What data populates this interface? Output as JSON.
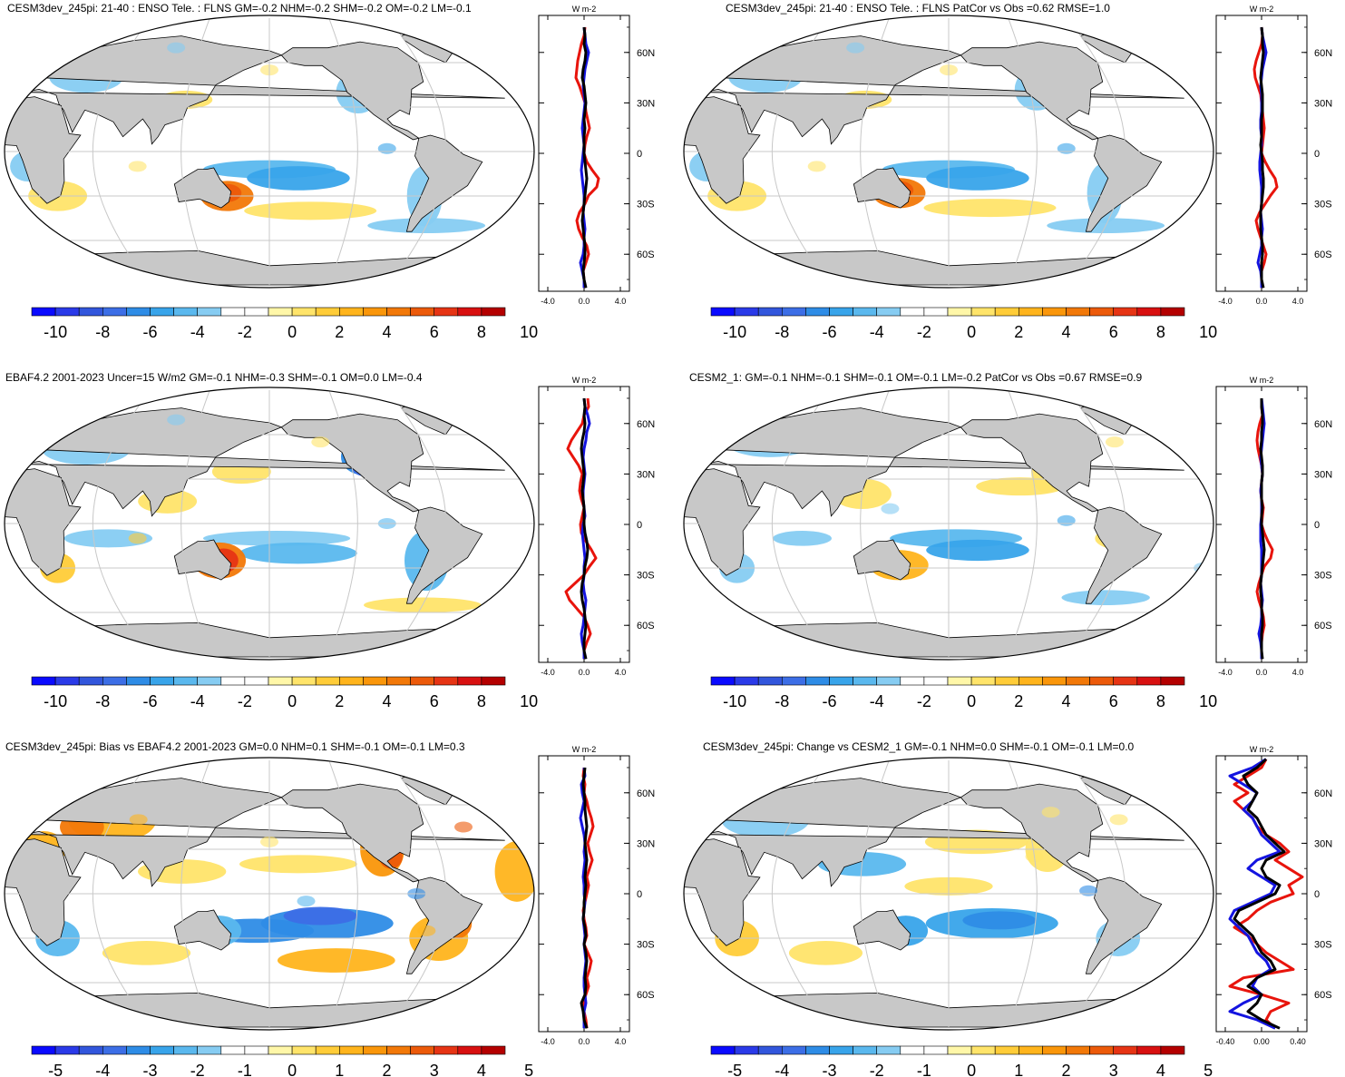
{
  "colors": {
    "ocean": "#ffffff",
    "land": "#c8c8c8",
    "grid": "#c8c8c8",
    "profile_red": "#e8140c",
    "profile_blue": "#1414e0",
    "profile_black": "#000000"
  },
  "colorbar": {
    "main_colors": [
      "#0a0aff",
      "#2a3ae8",
      "#3256dc",
      "#3c6ee6",
      "#2e8ce6",
      "#38a4ea",
      "#5ab8ee",
      "#86ccf2",
      "#ffffff",
      "#ffffff",
      "#fff7a8",
      "#ffe46a",
      "#ffcc38",
      "#ffb41c",
      "#fa960a",
      "#f27808",
      "#ec5a0a",
      "#e63414",
      "#d81010",
      "#b40000"
    ],
    "main_labels": [
      "-10",
      "-8",
      "-6",
      "-4",
      "-2",
      "0",
      "2",
      "4",
      "6",
      "8",
      "10"
    ],
    "bias_labels": [
      "-5",
      "-4",
      "-3",
      "-2",
      "-1",
      "0",
      "1",
      "2",
      "3",
      "4",
      "5"
    ]
  },
  "panels": [
    {
      "id": "p1",
      "title": "CESM3dev_245pi: 21-40 : ENSO Tele. : FLNS GM=-0.2 NHM=-0.2 SHM=-0.2 OM=-0.2 LM=-0.1",
      "colorbar_labels_key": "main",
      "profile": {
        "unit": "W m-2",
        "lat_labels": [
          "60N",
          "30N",
          "0",
          "30S",
          "60S"
        ],
        "x_labels": [
          "-4.0",
          "0.0",
          "4.0"
        ],
        "x_range": [
          -5,
          5
        ],
        "lat": [
          75,
          70,
          65,
          60,
          55,
          50,
          45,
          40,
          35,
          30,
          25,
          20,
          15,
          10,
          5,
          0,
          -5,
          -10,
          -15,
          -20,
          -25,
          -30,
          -35,
          -40,
          -45,
          -50,
          -55,
          -60,
          -65,
          -70,
          -75,
          -80
        ],
        "red": [
          0.1,
          0.0,
          -0.3,
          -0.5,
          -0.7,
          -0.8,
          -0.9,
          -0.5,
          -0.2,
          0.1,
          0.2,
          0.4,
          0.6,
          0.3,
          0.1,
          0.0,
          0.3,
          0.9,
          1.6,
          1.4,
          0.5,
          0.1,
          -0.5,
          -0.8,
          -0.6,
          -0.2,
          0.3,
          0.5,
          0.2,
          -0.1,
          0.0,
          0.0
        ],
        "blue": [
          0.0,
          0.1,
          0.2,
          0.5,
          0.3,
          0.1,
          0.0,
          -0.1,
          0.0,
          0.1,
          0.0,
          -0.1,
          -0.2,
          -0.1,
          0.0,
          -0.1,
          -0.2,
          -0.3,
          -0.2,
          -0.1,
          0.0,
          0.0,
          -0.1,
          0.0,
          0.1,
          0.0,
          0.0,
          -0.1,
          -0.4,
          -0.2,
          0.0,
          0.0
        ],
        "black": [
          0.0,
          0.1,
          0.0,
          0.2,
          0.1,
          -0.1,
          -0.2,
          0.0,
          0.1,
          0.2,
          0.1,
          0.0,
          0.1,
          0.0,
          0.0,
          0.0,
          0.1,
          0.2,
          0.3,
          0.2,
          0.1,
          0.0,
          -0.1,
          -0.2,
          -0.1,
          0.0,
          0.1,
          0.1,
          0.0,
          -0.1,
          0.0,
          0.2
        ]
      }
    },
    {
      "id": "p2",
      "title": "CESM3dev_245pi: 21-40 : ENSO Tele. : FLNS PatCor vs Obs =0.62 RMSE=1.0",
      "colorbar_labels_key": "main",
      "profile": {
        "unit": "W m-2",
        "lat_labels": [
          "60N",
          "30N",
          "0",
          "30S",
          "60S"
        ],
        "x_labels": [
          "-4.0",
          "0.0",
          "4.0"
        ],
        "x_range": [
          -5,
          5
        ],
        "lat": [
          75,
          70,
          65,
          60,
          55,
          50,
          45,
          40,
          35,
          30,
          25,
          20,
          15,
          10,
          5,
          0,
          -5,
          -10,
          -15,
          -20,
          -25,
          -30,
          -35,
          -40,
          -45,
          -50,
          -55,
          -60,
          -65,
          -70,
          -75,
          -80
        ],
        "red": [
          0.0,
          0.1,
          0.0,
          -0.3,
          -0.6,
          -0.8,
          -0.7,
          -0.4,
          -0.1,
          0.0,
          0.1,
          0.2,
          0.3,
          0.2,
          0.1,
          0.0,
          0.4,
          0.9,
          1.5,
          1.7,
          1.0,
          0.4,
          -0.2,
          -0.6,
          -0.4,
          -0.1,
          0.2,
          0.5,
          0.3,
          0.0,
          0.0,
          0.0
        ],
        "blue": [
          0.0,
          0.1,
          0.3,
          0.5,
          0.3,
          0.1,
          0.0,
          -0.1,
          0.0,
          0.0,
          0.0,
          -0.1,
          -0.1,
          0.0,
          0.0,
          -0.1,
          -0.2,
          -0.2,
          -0.1,
          0.0,
          0.0,
          0.0,
          -0.1,
          0.0,
          0.1,
          0.0,
          0.0,
          -0.2,
          -0.4,
          -0.1,
          0.0,
          0.0
        ],
        "black": [
          0.0,
          0.1,
          0.1,
          0.2,
          0.1,
          0.0,
          -0.1,
          0.0,
          0.1,
          0.1,
          0.1,
          0.0,
          0.0,
          0.0,
          -0.1,
          0.0,
          0.1,
          0.1,
          0.2,
          0.2,
          0.1,
          0.0,
          -0.1,
          -0.1,
          -0.1,
          0.0,
          0.1,
          0.1,
          0.0,
          0.0,
          0.0,
          0.2
        ]
      }
    },
    {
      "id": "p3",
      "title": "EBAF4.2 2001-2023 Uncer=15 W/m2 GM=-0.1 NHM=-0.3 SHM=-0.1 OM=0.0 LM=-0.4",
      "colorbar_labels_key": "main",
      "profile": {
        "unit": "W m-2",
        "lat_labels": [
          "60N",
          "30N",
          "0",
          "30S",
          "60S"
        ],
        "x_labels": [
          "-4.0",
          "0.0",
          "4.0"
        ],
        "x_range": [
          -5,
          5
        ],
        "lat": [
          75,
          70,
          65,
          60,
          55,
          50,
          45,
          40,
          35,
          30,
          25,
          20,
          15,
          10,
          5,
          0,
          -5,
          -10,
          -15,
          -20,
          -25,
          -30,
          -35,
          -40,
          -45,
          -50,
          -55,
          -60,
          -65,
          -70,
          -75,
          -80
        ],
        "red": [
          0.4,
          0.5,
          0.0,
          -0.2,
          -0.8,
          -1.4,
          -1.8,
          -1.2,
          -0.6,
          -0.2,
          -0.4,
          -0.5,
          -0.3,
          0.0,
          -0.2,
          -0.4,
          -0.3,
          0.2,
          0.8,
          1.3,
          0.6,
          0.0,
          -1.0,
          -2.0,
          -1.6,
          -0.8,
          0.0,
          0.4,
          0.7,
          0.3,
          0.0,
          0.0
        ],
        "blue": [
          0.0,
          0.1,
          0.4,
          0.6,
          0.3,
          0.2,
          0.0,
          -0.1,
          0.0,
          0.1,
          0.0,
          -0.1,
          -0.1,
          0.0,
          0.1,
          -0.1,
          -0.2,
          -0.1,
          0.0,
          0.1,
          0.0,
          0.0,
          -0.1,
          0.0,
          0.2,
          0.1,
          0.0,
          -0.1,
          -0.3,
          -0.2,
          0.0,
          0.0
        ],
        "black": [
          0.0,
          0.1,
          0.0,
          0.1,
          0.0,
          -0.2,
          -0.3,
          -0.2,
          -0.1,
          0.0,
          -0.1,
          -0.2,
          -0.1,
          0.0,
          0.0,
          0.0,
          0.1,
          0.3,
          0.4,
          0.3,
          0.1,
          0.0,
          -0.2,
          -0.3,
          -0.2,
          0.0,
          0.1,
          0.2,
          0.1,
          0.0,
          0.0,
          0.2
        ]
      }
    },
    {
      "id": "p4",
      "title": "CESM2_1: GM=-0.1 NHM=-0.1 SHM=-0.1 OM=-0.1 LM=-0.2 PatCor vs Obs =0.67 RMSE=0.9",
      "colorbar_labels_key": "main",
      "profile": {
        "unit": "W m-2",
        "lat_labels": [
          "60N",
          "30N",
          "0",
          "30S",
          "60S"
        ],
        "x_labels": [
          "-4.0",
          "0.0",
          "4.0"
        ],
        "x_range": [
          -5,
          5
        ],
        "lat": [
          75,
          70,
          65,
          60,
          55,
          50,
          45,
          40,
          35,
          30,
          25,
          20,
          15,
          10,
          5,
          0,
          -5,
          -10,
          -15,
          -20,
          -25,
          -30,
          -35,
          -40,
          -45,
          -50,
          -55,
          -60,
          -65,
          -70,
          -75,
          -80
        ],
        "red": [
          0.0,
          0.0,
          0.1,
          -0.2,
          -0.4,
          -0.5,
          -0.4,
          -0.2,
          0.0,
          0.1,
          0.0,
          -0.1,
          0.0,
          0.2,
          0.1,
          0.0,
          0.3,
          0.7,
          1.2,
          1.0,
          0.3,
          0.0,
          -0.3,
          -0.5,
          -0.3,
          0.0,
          0.2,
          0.3,
          0.1,
          0.0,
          0.0,
          0.0
        ],
        "blue": [
          0.0,
          0.1,
          0.2,
          0.3,
          0.2,
          0.1,
          0.0,
          -0.1,
          0.0,
          0.1,
          0.0,
          -0.1,
          0.0,
          0.0,
          0.0,
          -0.1,
          -0.1,
          -0.1,
          0.0,
          0.0,
          0.0,
          0.0,
          -0.1,
          0.0,
          0.1,
          0.0,
          0.0,
          -0.1,
          -0.3,
          -0.1,
          0.0,
          0.0
        ],
        "black": [
          0.0,
          0.0,
          0.1,
          0.1,
          0.0,
          0.0,
          -0.1,
          0.0,
          0.1,
          0.1,
          0.0,
          0.0,
          0.0,
          0.1,
          0.0,
          0.0,
          0.1,
          0.2,
          0.3,
          0.2,
          0.1,
          0.0,
          -0.1,
          -0.1,
          0.0,
          0.0,
          0.1,
          0.1,
          0.0,
          0.0,
          0.0,
          0.1
        ]
      }
    },
    {
      "id": "p5",
      "title": "CESM3dev_245pi: Bias vs EBAF4.2 2001-2023 GM=0.0 NHM=0.1 SHM=-0.1 OM=-0.1 LM=0.3",
      "colorbar_labels_key": "bias",
      "profile": {
        "unit": "W m-2",
        "lat_labels": [
          "60N",
          "30N",
          "0",
          "30S",
          "60S"
        ],
        "x_labels": [
          "-4.0",
          "0.0",
          "4.0"
        ],
        "x_range": [
          -5,
          5
        ],
        "lat": [
          75,
          70,
          65,
          60,
          55,
          50,
          45,
          40,
          35,
          30,
          25,
          20,
          15,
          10,
          5,
          0,
          -5,
          -10,
          -15,
          -20,
          -25,
          -30,
          -35,
          -40,
          -45,
          -50,
          -55,
          -60,
          -65,
          -70,
          -75,
          -80
        ],
        "red": [
          0.0,
          -0.1,
          0.1,
          0.0,
          0.3,
          0.5,
          0.8,
          1.0,
          0.7,
          0.4,
          0.6,
          0.9,
          0.6,
          0.3,
          0.5,
          0.3,
          0.1,
          -0.1,
          0.0,
          0.2,
          0.3,
          0.0,
          0.4,
          0.8,
          0.6,
          0.3,
          0.5,
          0.2,
          -0.1,
          0.0,
          0.2,
          0.3
        ],
        "blue": [
          0.0,
          0.1,
          -0.3,
          -0.2,
          0.0,
          -0.2,
          -0.4,
          -0.2,
          0.0,
          0.1,
          0.0,
          0.1,
          0.0,
          -0.1,
          0.0,
          0.0,
          0.1,
          0.0,
          -0.1,
          0.0,
          0.1,
          0.0,
          0.1,
          0.2,
          0.1,
          0.0,
          0.0,
          0.1,
          0.2,
          0.0,
          0.0,
          0.0
        ],
        "black": [
          0.1,
          0.0,
          -0.1,
          0.0,
          0.1,
          0.1,
          0.2,
          0.3,
          0.2,
          0.1,
          0.2,
          0.3,
          0.2,
          0.1,
          0.2,
          0.1,
          0.0,
          0.0,
          -0.1,
          0.1,
          0.2,
          0.0,
          0.2,
          0.3,
          0.2,
          0.1,
          0.2,
          0.1,
          -0.3,
          -0.1,
          0.0,
          0.3
        ]
      }
    },
    {
      "id": "p6",
      "title": "CESM3dev_245pi: Change vs CESM2_1 GM=-0.1 NHM=0.0 SHM=-0.1 OM=-0.1 LM=0.0",
      "colorbar_labels_key": "bias",
      "profile": {
        "unit": "W m-2",
        "lat_labels": [
          "60N",
          "30N",
          "0",
          "30S",
          "60S"
        ],
        "x_labels": [
          "-0.40",
          "0.00",
          "0.40"
        ],
        "x_range": [
          -0.5,
          0.5
        ],
        "lat": [
          80,
          75,
          70,
          65,
          60,
          55,
          50,
          45,
          40,
          35,
          30,
          25,
          20,
          15,
          10,
          5,
          0,
          -5,
          -10,
          -15,
          -20,
          -25,
          -30,
          -35,
          -40,
          -45,
          -50,
          -55,
          -60,
          -65,
          -70,
          -75,
          -80
        ],
        "red": [
          0.05,
          0.0,
          -0.15,
          -0.3,
          -0.15,
          -0.3,
          -0.2,
          -0.1,
          -0.05,
          0.05,
          0.2,
          0.3,
          0.15,
          0.3,
          0.45,
          0.3,
          0.35,
          0.1,
          -0.05,
          -0.15,
          -0.3,
          -0.15,
          -0.05,
          0.05,
          0.2,
          0.35,
          -0.2,
          -0.35,
          0.0,
          0.3,
          0.1,
          0.05,
          0.15
        ],
        "blue": [
          0.05,
          -0.1,
          -0.35,
          -0.2,
          -0.05,
          -0.1,
          -0.2,
          -0.1,
          -0.05,
          0.0,
          0.1,
          0.2,
          -0.05,
          -0.15,
          0.0,
          0.15,
          0.1,
          -0.1,
          -0.3,
          -0.35,
          -0.25,
          -0.15,
          -0.1,
          -0.05,
          0.05,
          0.1,
          -0.05,
          -0.1,
          0.0,
          -0.2,
          -0.35,
          -0.05,
          0.15
        ],
        "black": [
          0.05,
          -0.05,
          -0.2,
          -0.15,
          -0.05,
          -0.1,
          -0.15,
          -0.05,
          0.0,
          0.05,
          0.15,
          0.25,
          0.05,
          0.0,
          0.05,
          0.2,
          0.15,
          -0.05,
          -0.25,
          -0.3,
          -0.2,
          -0.1,
          -0.05,
          0.0,
          0.1,
          0.15,
          -0.05,
          -0.15,
          0.0,
          -0.05,
          -0.15,
          0.0,
          0.2
        ]
      }
    }
  ]
}
